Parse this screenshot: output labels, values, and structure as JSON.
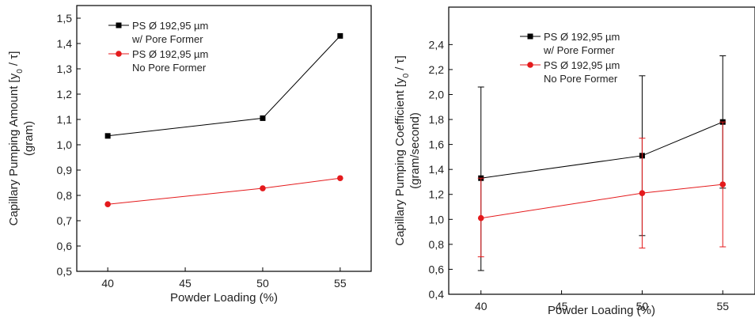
{
  "chart_data": [
    {
      "type": "line",
      "title": "",
      "xlabel": "Powder Loading (%)",
      "ylabel_line1": "Capillary Pumping Amount [y",
      "ylabel_sub": "0",
      "ylabel_line1_end": " / τ]",
      "ylabel_line2": "(gram)",
      "xlim": [
        38,
        57
      ],
      "ylim": [
        0.5,
        1.55
      ],
      "xticks": [
        40,
        45,
        50,
        55
      ],
      "yticks": [
        0.5,
        0.6,
        0.7,
        0.8,
        0.9,
        1.0,
        1.1,
        1.2,
        1.3,
        1.4,
        1.5
      ],
      "xtick_labels": [
        "40",
        "45",
        "50",
        "55"
      ],
      "ytick_labels": [
        "0,5",
        "0,6",
        "0,7",
        "0,8",
        "0,9",
        "1,0",
        "1,1",
        "1,2",
        "1,3",
        "1,4",
        "1,5"
      ],
      "legend_position": "top-left",
      "series": [
        {
          "name_line1": "PS Ø 192,95 µm",
          "name_line2": "w/ Pore Former",
          "color": "#000000",
          "marker": "square",
          "x": [
            40,
            50,
            55
          ],
          "y": [
            1.035,
            1.105,
            1.43
          ]
        },
        {
          "name_line1": "PS Ø 192,95 µm",
          "name_line2": "No Pore Former",
          "color": "#e41a1c",
          "marker": "circle",
          "x": [
            40,
            50,
            55
          ],
          "y": [
            0.765,
            0.828,
            0.868
          ]
        }
      ]
    },
    {
      "type": "line",
      "title": "",
      "xlabel": "Powder Loading (%)",
      "ylabel_line1": "Capillary Pumping Coefficient [y",
      "ylabel_sub": "0",
      "ylabel_line1_end": " / τ]",
      "ylabel_line2": "(gram/second)",
      "xlim": [
        38,
        57
      ],
      "ylim": [
        0.4,
        2.7
      ],
      "xticks": [
        40,
        45,
        50,
        55
      ],
      "yticks": [
        0.4,
        0.6,
        0.8,
        1.0,
        1.2,
        1.4,
        1.6,
        1.8,
        2.0,
        2.2,
        2.4
      ],
      "xtick_labels": [
        "40",
        "45",
        "50",
        "55"
      ],
      "ytick_labels": [
        "0,4",
        "0,6",
        "0,8",
        "1,0",
        "1,2",
        "1,4",
        "1,6",
        "1,8",
        "2,0",
        "2,2",
        "2,4"
      ],
      "legend_position": "top-left",
      "series": [
        {
          "name_line1": "PS Ø 192,95 µm",
          "name_line2": "w/ Pore Former",
          "color": "#000000",
          "marker": "square",
          "x": [
            40,
            50,
            55
          ],
          "y": [
            1.33,
            1.51,
            1.78
          ],
          "err_low": [
            0.59,
            0.87,
            1.25
          ],
          "err_high": [
            2.06,
            2.15,
            2.31
          ]
        },
        {
          "name_line1": "PS Ø 192,95 µm",
          "name_line2": "No Pore Former",
          "color": "#e41a1c",
          "marker": "circle",
          "x": [
            40,
            50,
            55
          ],
          "y": [
            1.01,
            1.21,
            1.28
          ],
          "err_low": [
            0.7,
            0.77,
            0.78
          ],
          "err_high": [
            1.33,
            1.65,
            1.78
          ]
        }
      ]
    }
  ]
}
